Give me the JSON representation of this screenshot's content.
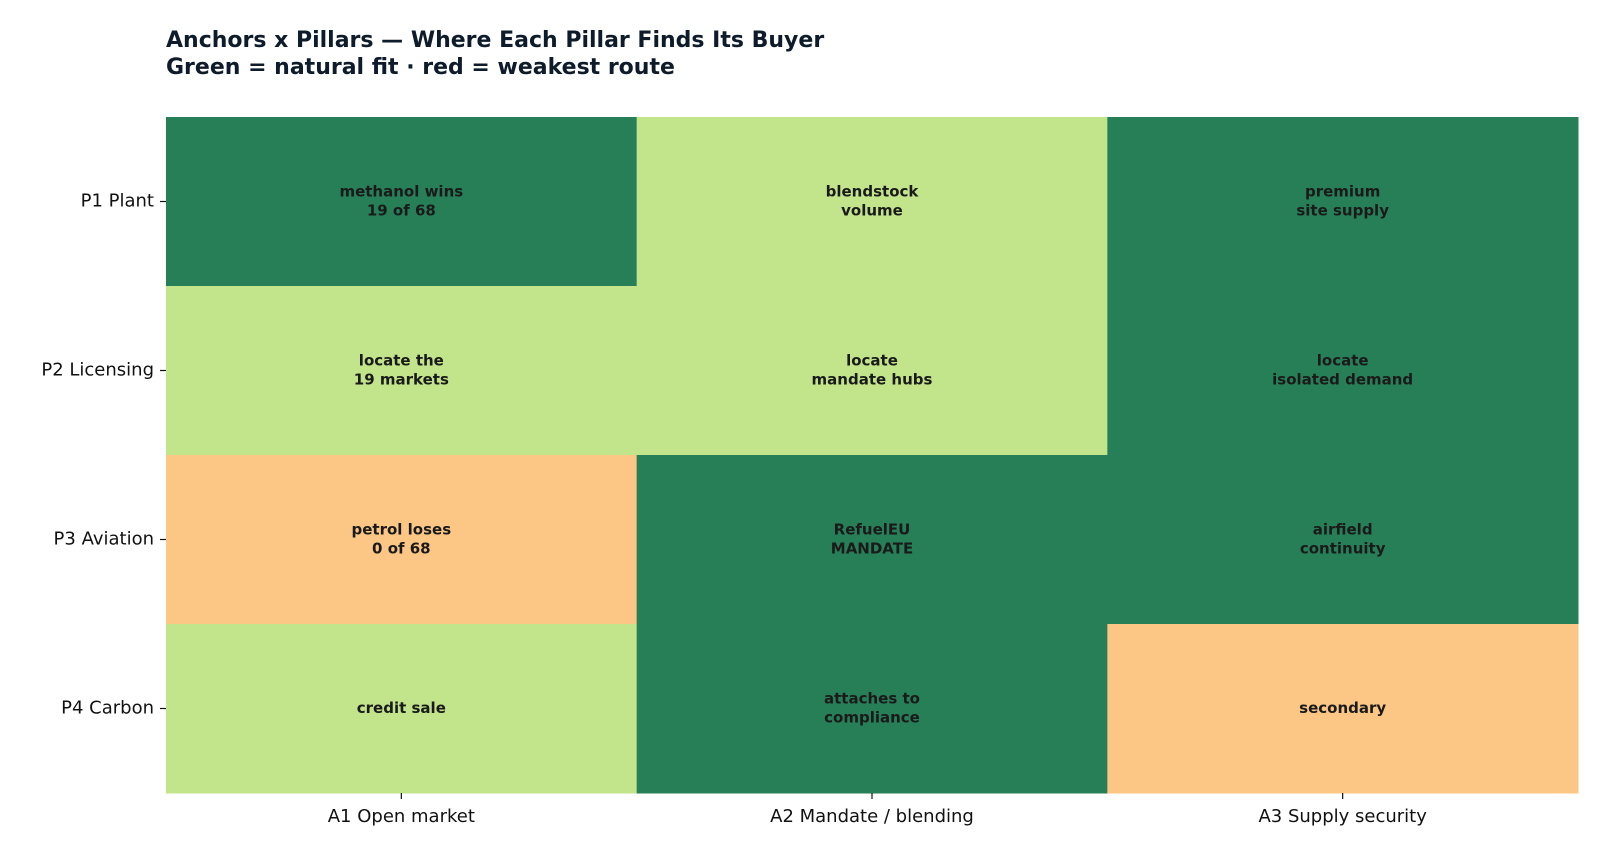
{
  "chart_data": {
    "type": "heatmap",
    "title": "Anchors x Pillars — Where Each Pillar Finds Its Buyer",
    "subtitle": "Green = natural fit · red = weakest route",
    "rows": [
      "P1 Plant",
      "P2 Licensing",
      "P3 Aviation",
      "P4 Carbon"
    ],
    "columns": [
      "A1 Open market",
      "A2 Mandate / blending",
      "A3 Supply security"
    ],
    "cells": [
      [
        {
          "lines": [
            "methanol wins",
            "19 of 68"
          ],
          "color": "#277f58"
        },
        {
          "lines": [
            "blendstock",
            "volume"
          ],
          "color": "#c2e58b"
        },
        {
          "lines": [
            "premium",
            "site supply"
          ],
          "color": "#277f58"
        }
      ],
      [
        {
          "lines": [
            "locate the",
            "19 markets"
          ],
          "color": "#c2e58b"
        },
        {
          "lines": [
            "locate",
            "mandate hubs"
          ],
          "color": "#c2e58b"
        },
        {
          "lines": [
            "locate",
            "isolated demand"
          ],
          "color": "#277f58"
        }
      ],
      [
        {
          "lines": [
            "petrol loses",
            "0 of 68"
          ],
          "color": "#fcc685"
        },
        {
          "lines": [
            "RefuelEU",
            "MANDATE"
          ],
          "color": "#277f58"
        },
        {
          "lines": [
            "airfield",
            "continuity"
          ],
          "color": "#277f58"
        }
      ],
      [
        {
          "lines": [
            "credit sale"
          ],
          "color": "#c2e58b"
        },
        {
          "lines": [
            "attaches to",
            "compliance"
          ],
          "color": "#277f58"
        },
        {
          "lines": [
            "secondary"
          ],
          "color": "#fcc685"
        }
      ]
    ]
  }
}
